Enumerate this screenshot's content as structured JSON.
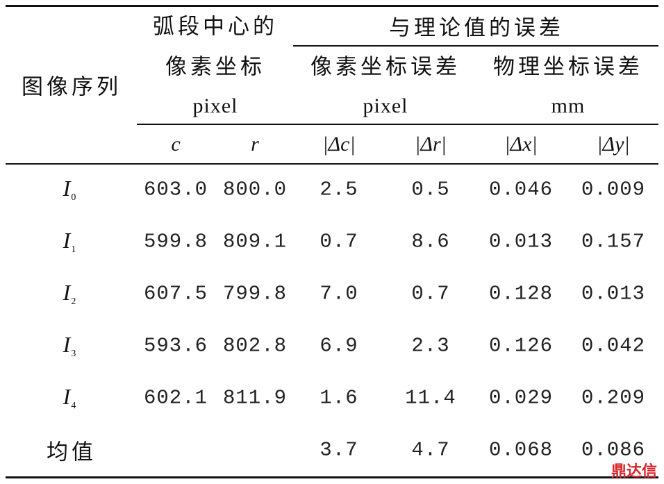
{
  "table": {
    "header": {
      "row_label": "图像序列",
      "center": "弧段中心的",
      "center2": "像素坐标",
      "center_unit": "pixel",
      "error": "与理论值的误差",
      "pixel_error": "像素坐标误差",
      "pixel_error_unit": "pixel",
      "physical_error": "物理坐标误差",
      "physical_error_unit": "mm",
      "sub": [
        "c",
        "r",
        "|Δc|",
        "|Δr|",
        "|Δx|",
        "|Δy|"
      ]
    },
    "rows": [
      {
        "symbol": "I",
        "subscript": "0",
        "cells": [
          "603.0",
          "800.0",
          "2.5",
          "0.5",
          "0.046",
          "0.009"
        ]
      },
      {
        "symbol": "I",
        "subscript": "1",
        "cells": [
          "599.8",
          "809.1",
          "0.7",
          "8.6",
          "0.013",
          "0.157"
        ]
      },
      {
        "symbol": "I",
        "subscript": "2",
        "cells": [
          "607.5",
          "799.8",
          "7.0",
          "0.7",
          "0.128",
          "0.013"
        ]
      },
      {
        "symbol": "I",
        "subscript": "3",
        "cells": [
          "593.6",
          "802.8",
          "6.9",
          "2.3",
          "0.126",
          "0.042"
        ]
      },
      {
        "symbol": "I",
        "subscript": "4",
        "cells": [
          "602.1",
          "811.9",
          "1.6",
          "11.4",
          "0.029",
          "0.209"
        ]
      }
    ],
    "mean": {
      "label": "均值",
      "cells": [
        "3.7",
        "4.7",
        "0.068",
        "0.086"
      ]
    },
    "watermark": "鼎达信"
  }
}
